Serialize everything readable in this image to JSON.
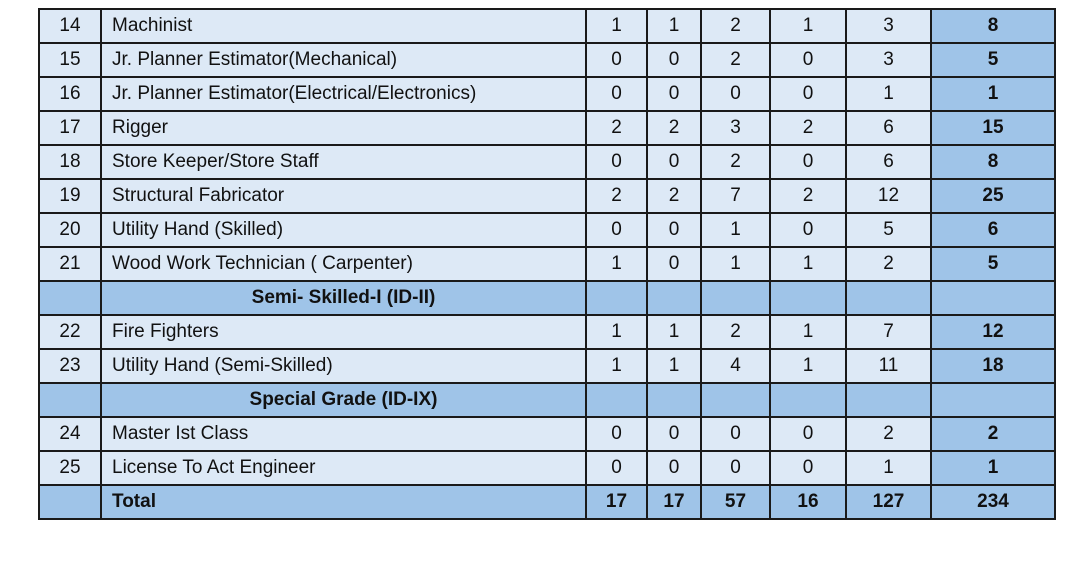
{
  "table": {
    "rows": [
      {
        "no": 14,
        "name": "Machinist",
        "values": [
          1,
          1,
          2,
          1,
          3
        ],
        "total": 8
      },
      {
        "no": 15,
        "name": "Jr. Planner Estimator(Mechanical)",
        "values": [
          0,
          0,
          2,
          0,
          3
        ],
        "total": 5
      },
      {
        "no": 16,
        "name": "Jr. Planner Estimator(Electrical/Electronics)",
        "values": [
          0,
          0,
          0,
          0,
          1
        ],
        "total": 1
      },
      {
        "no": 17,
        "name": "Rigger",
        "values": [
          2,
          2,
          3,
          2,
          6
        ],
        "total": 15
      },
      {
        "no": 18,
        "name": "Store Keeper/Store Staff",
        "values": [
          0,
          0,
          2,
          0,
          6
        ],
        "total": 8
      },
      {
        "no": 19,
        "name": "Structural Fabricator",
        "values": [
          2,
          2,
          7,
          2,
          12
        ],
        "total": 25
      },
      {
        "no": 20,
        "name": "Utility Hand (Skilled)",
        "values": [
          0,
          0,
          1,
          0,
          5
        ],
        "total": 6
      },
      {
        "no": 21,
        "name": "Wood Work Technician ( Carpenter)",
        "values": [
          1,
          0,
          1,
          1,
          2
        ],
        "total": 5
      },
      {
        "section": "Semi- Skilled-I (ID-II)"
      },
      {
        "no": 22,
        "name": "Fire Fighters",
        "values": [
          1,
          1,
          2,
          1,
          7
        ],
        "total": 12
      },
      {
        "no": 23,
        "name": "Utility Hand (Semi-Skilled)",
        "values": [
          1,
          1,
          4,
          1,
          11
        ],
        "total": 18
      },
      {
        "section": "Special Grade (ID-IX)"
      },
      {
        "no": 24,
        "name": "Master Ist Class",
        "values": [
          0,
          0,
          0,
          0,
          2
        ],
        "total": 2
      },
      {
        "no": 25,
        "name": "License To Act Engineer",
        "values": [
          0,
          0,
          0,
          0,
          1
        ],
        "total": 1
      },
      {
        "grand": "Total",
        "values": [
          17,
          17,
          57,
          16,
          127
        ],
        "total": 234
      }
    ]
  }
}
